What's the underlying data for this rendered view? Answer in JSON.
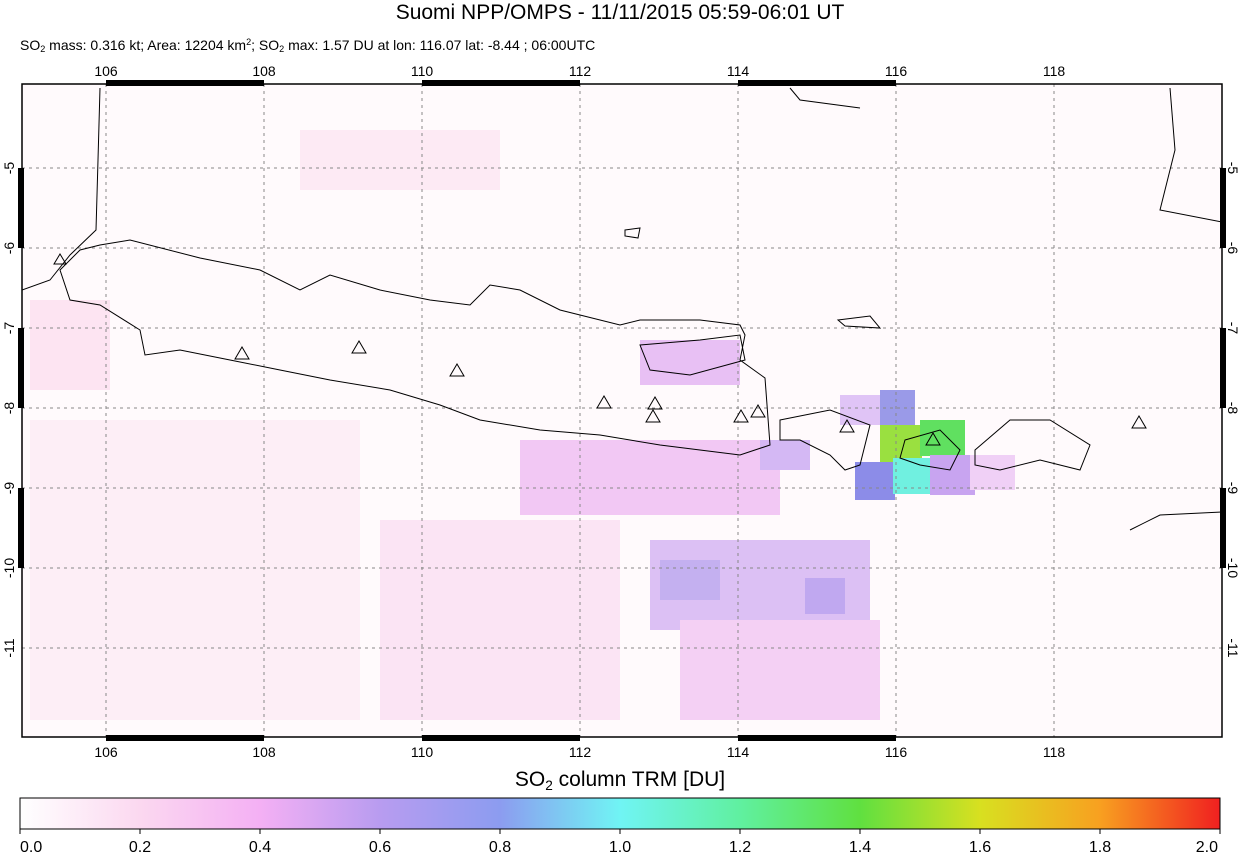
{
  "header": {
    "title": "Suomi NPP/OMPS - 11/11/2015 05:59-06:01 UT",
    "subtitle_parts": [
      "SO",
      "2",
      " mass: 0.316 kt; Area: 12204 km",
      "2",
      "; SO",
      "2",
      " max: 1.57 DU at lon: 116.07 lat: -8.44 ; 06:00UTC"
    ]
  },
  "map": {
    "lon_ticks": [
      106,
      108,
      110,
      112,
      114,
      116,
      118
    ],
    "lat_ticks": [
      -5,
      -6,
      -7,
      -8,
      -9,
      -10,
      -11
    ]
  },
  "colorbar": {
    "label_parts": [
      "SO",
      "2",
      " column TRM [DU]"
    ],
    "ticks": [
      {
        "value": 0,
        "label": "0.0"
      },
      {
        "value": 0.2,
        "label": "0.2"
      },
      {
        "value": 0.4,
        "label": "0.4"
      },
      {
        "value": 0.6,
        "label": "0.6"
      },
      {
        "value": 0.8,
        "label": "0.8"
      },
      {
        "value": 1,
        "label": "1.0"
      },
      {
        "value": 1.2,
        "label": "1.2"
      },
      {
        "value": 1.4,
        "label": "1.4"
      },
      {
        "value": 1.6,
        "label": "1.6"
      },
      {
        "value": 1.8,
        "label": "1.8"
      },
      {
        "value": 2,
        "label": "2.0"
      }
    ]
  }
}
